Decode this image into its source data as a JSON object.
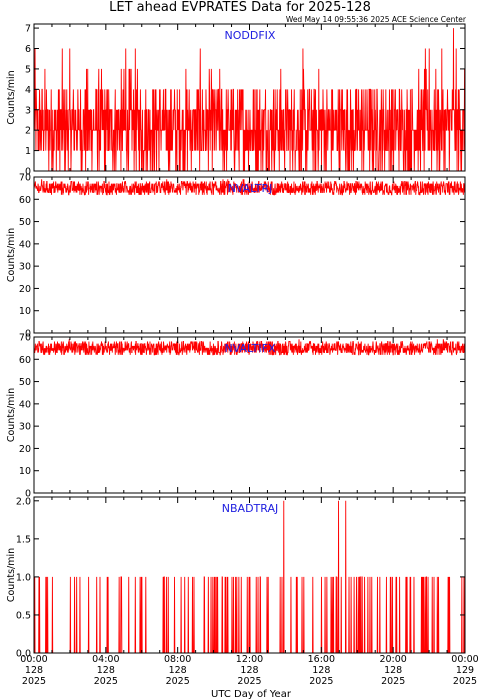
{
  "title": "LET ahead EVPRATES Data for 2025-128",
  "timestamp": "Wed May 14 09:55:36 2025 ACE Science Center",
  "xlabel": "UTC Day of Year",
  "x_ticks": [
    {
      "time": "00:00",
      "day": "128",
      "year": "2025"
    },
    {
      "time": "04:00",
      "day": "128",
      "year": "2025"
    },
    {
      "time": "08:00",
      "day": "128",
      "year": "2025"
    },
    {
      "time": "12:00",
      "day": "128",
      "year": "2025"
    },
    {
      "time": "16:00",
      "day": "128",
      "year": "2025"
    },
    {
      "time": "20:00",
      "day": "128",
      "year": "2025"
    },
    {
      "time": "00:00",
      "day": "129",
      "year": "2025"
    }
  ],
  "colors": {
    "series": "#ff0000",
    "panel_label": "#2020e0",
    "axes": "#000000"
  },
  "chart_data": [
    {
      "type": "line",
      "label": "NODDFIX",
      "ylabel": "Counts/min",
      "ylim": [
        0,
        7.2
      ],
      "yticks": [
        0,
        1,
        2,
        3,
        4,
        5,
        6,
        7
      ],
      "x_range_hours": [
        0,
        24
      ],
      "sample_minutes": 1,
      "values_summary": "noisy counts mostly 0-4, occasional 5-6, one 7 near 23:20",
      "peaks": [
        {
          "hour": 23.35,
          "value": 7
        },
        {
          "hour": 5.1,
          "value": 6
        },
        {
          "hour": 22.0,
          "value": 6
        }
      ]
    },
    {
      "type": "line",
      "label": "NVALTRJ",
      "ylabel": "Counts/min",
      "ylim": [
        0,
        70
      ],
      "yticks": [
        0,
        10,
        20,
        30,
        40,
        50,
        60,
        70
      ],
      "x_range_hours": [
        0,
        24
      ],
      "sample_minutes": 1,
      "values_summary": "band between about 62 and 68"
    },
    {
      "type": "line",
      "label": "NVALTIFX",
      "ylabel": "Counts/min",
      "ylim": [
        0,
        70
      ],
      "yticks": [
        0,
        10,
        20,
        30,
        40,
        50,
        60,
        70
      ],
      "x_range_hours": [
        0,
        24
      ],
      "sample_minutes": 1,
      "values_summary": "band between about 62 and 69"
    },
    {
      "type": "line",
      "label": "NBADTRAJ",
      "ylabel": "Counts/min",
      "ylim": [
        0,
        2.05
      ],
      "yticks": [
        "0.0",
        "0.5",
        "1.0",
        "1.5",
        "2.0"
      ],
      "x_range_hours": [
        0,
        24
      ],
      "sample_minutes": 1,
      "values_summary": "mostly 0 with spikes to 1, a few spikes to 2",
      "peaks": [
        {
          "hour": 13.9,
          "value": 2
        },
        {
          "hour": 16.95,
          "value": 2
        },
        {
          "hour": 17.35,
          "value": 2
        }
      ]
    }
  ]
}
